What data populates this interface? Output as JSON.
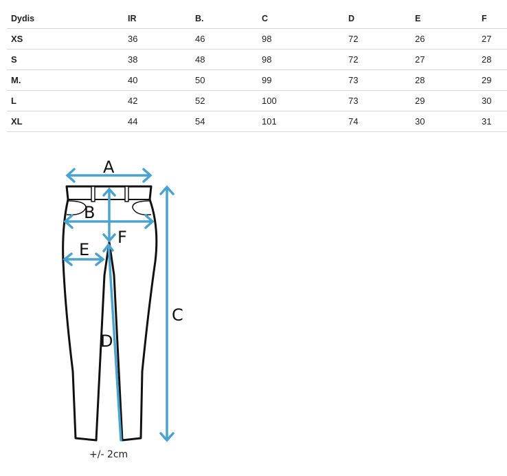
{
  "table": {
    "headers": [
      "Dydis",
      "IR",
      "B.",
      "C",
      "D",
      "E",
      "F"
    ],
    "rows": [
      [
        "XS",
        "36",
        "46",
        "98",
        "72",
        "26",
        "27"
      ],
      [
        "S",
        "38",
        "48",
        "98",
        "72",
        "27",
        "28"
      ],
      [
        "M.",
        "40",
        "50",
        "99",
        "73",
        "28",
        "29"
      ],
      [
        "L",
        "42",
        "52",
        "100",
        "73",
        "29",
        "30"
      ],
      [
        "XL",
        "44",
        "54",
        "101",
        "74",
        "30",
        "31"
      ]
    ]
  },
  "diagram": {
    "labels": {
      "a": "A",
      "b": "B",
      "c": "C",
      "d": "D",
      "e": "E",
      "f": "F"
    },
    "tolerance": "+/- 2cm",
    "arrow_color": "#4aa3cf"
  }
}
